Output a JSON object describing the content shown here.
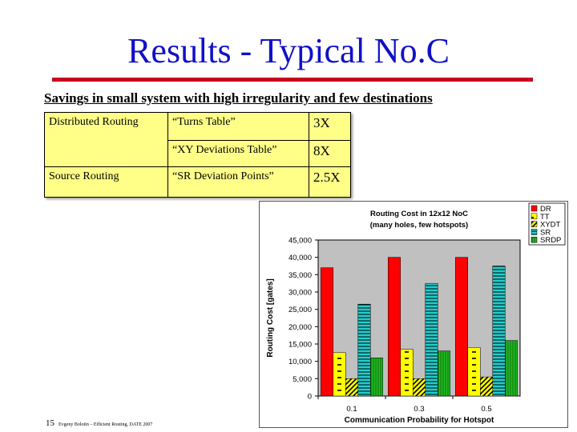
{
  "slide": {
    "title": "Results - Typical No.C",
    "subtitle": "Savings in small system with high irregularity and few destinations",
    "number": "15",
    "footer": "Evgeny Bolotin – Efficient Routing, DATE 2007"
  },
  "table": {
    "rows": [
      {
        "category": "Distributed Routing",
        "method": "“Turns Table”",
        "saving": "3X"
      },
      {
        "category": "",
        "method": "“XY Deviations Table”",
        "saving": "8X"
      },
      {
        "category": "Source Routing",
        "method": "“SR Deviation Points”",
        "saving": "2.5X"
      }
    ]
  },
  "colors": {
    "title": "#1010c8",
    "rule": "#c8001e",
    "table_bg": "#ffff88"
  },
  "chart_data": {
    "type": "bar",
    "title": "Routing Cost in 12x12 NoC",
    "subtitle": "(many holes, few hotspots)",
    "xlabel": "Communication Probability for Hotspot",
    "ylabel": "Routing Cost  [gates]",
    "categories": [
      "0.1",
      "0.3",
      "0.5"
    ],
    "ylim": [
      0,
      45000
    ],
    "yticks": [
      "0",
      "5,000",
      "10,000",
      "15,000",
      "20,000",
      "25,000",
      "30,000",
      "35,000",
      "40,000",
      "45,000"
    ],
    "grid": false,
    "legend": "top-right",
    "series": [
      {
        "name": "DR",
        "values": [
          37000,
          40000,
          40000
        ],
        "color": "#ff0000",
        "pattern": "solid"
      },
      {
        "name": "TT",
        "values": [
          12500,
          13500,
          14000
        ],
        "color": "#ffff00",
        "pattern": "dashes"
      },
      {
        "name": "XYDT",
        "values": [
          5000,
          5000,
          5500
        ],
        "color": "#ffff00",
        "pattern": "diagonal"
      },
      {
        "name": "SR",
        "values": [
          26500,
          32500,
          37500
        ],
        "color": "#22cccc",
        "pattern": "horizontal"
      },
      {
        "name": "SRDP",
        "values": [
          11000,
          13000,
          16000
        ],
        "color": "#22bb22",
        "pattern": "vertical"
      }
    ]
  }
}
